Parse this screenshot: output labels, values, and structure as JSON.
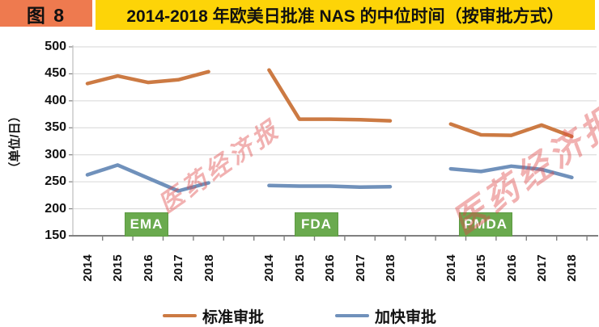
{
  "header": {
    "figure_tag": "图 8",
    "title": "2014-2018 年欧美日批准 NAS 的中位时间（按审批方式）"
  },
  "watermark": {
    "text": "医药经济报"
  },
  "colors": {
    "header_tag_bg": "#ee7a4f",
    "header_title_bg": "#fdd408",
    "standard_line": "#cc7a43",
    "expedited_line": "#7091bb",
    "agency_box_bg": "#6aaa4e",
    "gridline": "#d6d6d6",
    "axis": "#808080"
  },
  "chart_data": {
    "type": "line",
    "title": "2014-2018 年欧美日批准 NAS 的中位时间（按审批方式）",
    "ylabel": "（单位/日）",
    "xlabel": "",
    "ylim": [
      150,
      500
    ],
    "ytick_step": 50,
    "grid": "horizontal",
    "legend_position": "bottom",
    "years": [
      "2014",
      "2015",
      "2016",
      "2017",
      "2018"
    ],
    "groups": [
      {
        "label": "EMA",
        "standard": [
          432,
          446,
          434,
          439,
          454
        ],
        "expedited": [
          263,
          281,
          257,
          233,
          248
        ]
      },
      {
        "label": "FDA",
        "standard": [
          457,
          366,
          366,
          365,
          363
        ],
        "expedited": [
          243,
          242,
          242,
          240,
          241
        ]
      },
      {
        "label": "PMDA",
        "standard": [
          357,
          337,
          336,
          355,
          334
        ],
        "expedited": [
          274,
          269,
          279,
          273,
          258
        ]
      }
    ],
    "series_meta": [
      {
        "key": "standard",
        "name": "标准审批",
        "color": "#cc7a43"
      },
      {
        "key": "expedited",
        "name": "加快审批",
        "color": "#7091bb"
      }
    ]
  }
}
